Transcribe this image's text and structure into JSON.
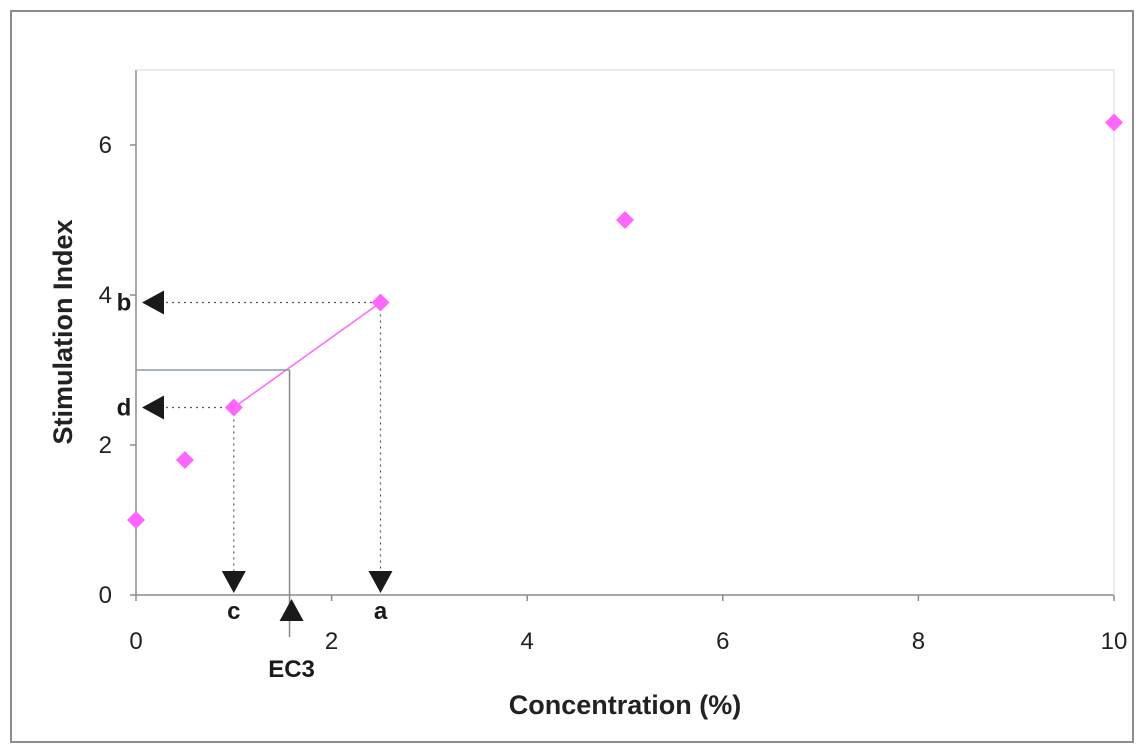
{
  "chart_data": {
    "type": "scatter",
    "title": "",
    "xlabel": "Concentration (%)",
    "ylabel": "Stimulation Index",
    "xlim": [
      0,
      10
    ],
    "ylim": [
      0,
      7
    ],
    "xticks": [
      "0",
      "2",
      "4",
      "6",
      "8",
      "10"
    ],
    "yticks": [
      "0",
      "2",
      "4",
      "6"
    ],
    "grid": false,
    "colors": {
      "points": "#ff66ff",
      "segment": "#ff66ff",
      "ec3_lines": "#8a9aaa",
      "markers": "#1a1a1a"
    },
    "series": [
      {
        "x": [
          0,
          0.5,
          1,
          2.5,
          5,
          10
        ],
        "y": [
          1.0,
          1.8,
          2.5,
          3.9,
          5.0,
          6.3
        ]
      }
    ],
    "annotations": {
      "a": {
        "label": "a",
        "x": 2.5
      },
      "b": {
        "label": "b",
        "y": 3.9
      },
      "c": {
        "label": "c",
        "x": 1
      },
      "d": {
        "label": "d",
        "y": 2.5
      },
      "ec3": {
        "label": "EC3",
        "x": 1.57,
        "y": 3
      }
    }
  }
}
